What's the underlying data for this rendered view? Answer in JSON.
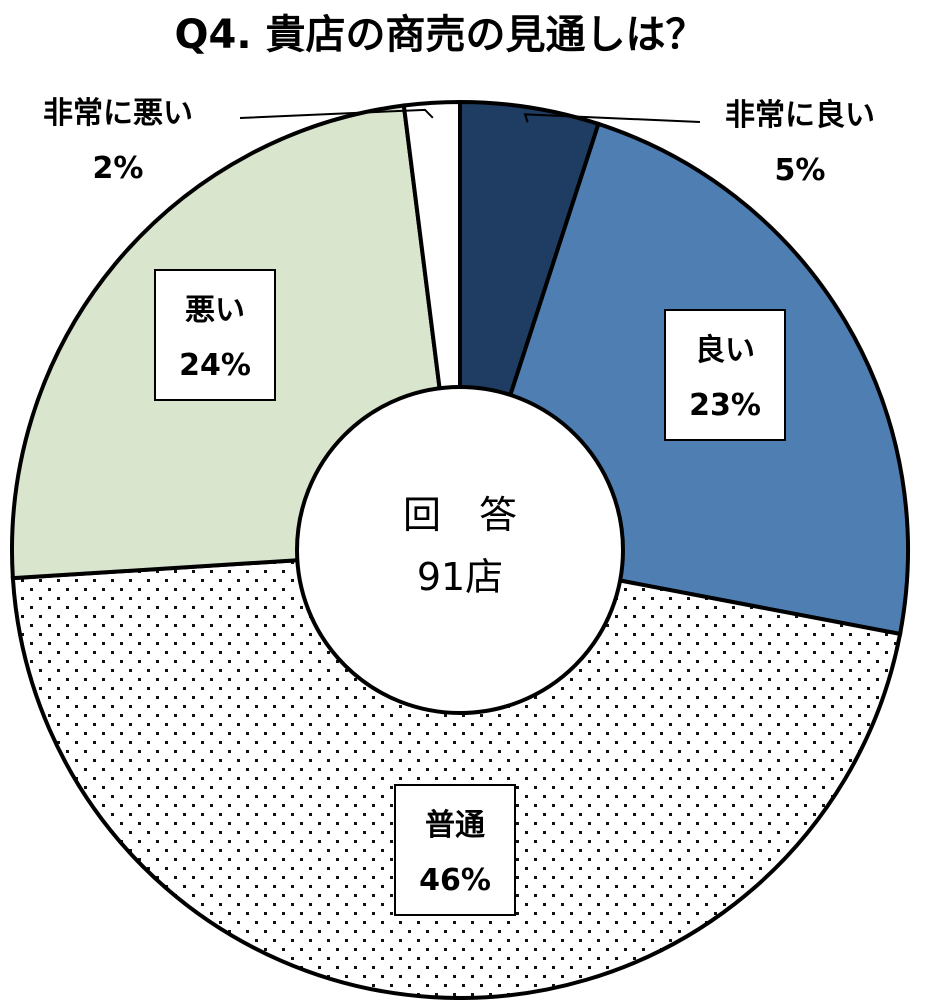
{
  "chart_data": {
    "type": "pie",
    "title": "Q4. 貴店の商売の見通しは？",
    "center_label": {
      "line1": "回　答",
      "line2": "91店"
    },
    "slices": [
      {
        "label": "非常に良い",
        "value": 5,
        "value_text": "5%",
        "color": "#1f3d63",
        "pattern": "solid"
      },
      {
        "label": "良い",
        "value": 23,
        "value_text": "23%",
        "color": "#4f7fb2",
        "pattern": "solid"
      },
      {
        "label": "普通",
        "value": 46,
        "value_text": "46%",
        "color": "#ffffff",
        "pattern": "dots"
      },
      {
        "label": "悪い",
        "value": 24,
        "value_text": "24%",
        "color": "#d9e5cd",
        "pattern": "solid"
      },
      {
        "label": "非常に悪い",
        "value": 2,
        "value_text": "2%",
        "color": "#ffffff",
        "pattern": "solid"
      }
    ]
  }
}
